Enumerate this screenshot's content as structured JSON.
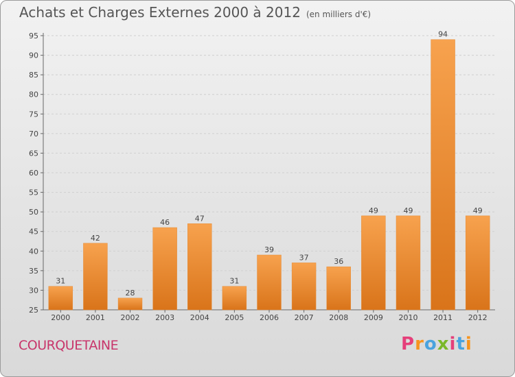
{
  "chart_data": {
    "type": "bar",
    "title": "Achats et Charges Externes 2000 à 2012",
    "subtitle": "(en milliers d'€)",
    "categories": [
      "2000",
      "2001",
      "2002",
      "2003",
      "2004",
      "2005",
      "2006",
      "2007",
      "2008",
      "2009",
      "2010",
      "2011",
      "2012"
    ],
    "values": [
      31,
      42,
      28,
      46,
      47,
      31,
      39,
      37,
      36,
      49,
      49,
      94,
      49
    ],
    "ylim": [
      25,
      95
    ],
    "yticks": [
      25,
      30,
      35,
      40,
      45,
      50,
      55,
      60,
      65,
      70,
      75,
      80,
      85,
      90,
      95
    ],
    "grid": true,
    "bar_color": "#f0913a"
  },
  "footer": {
    "town": "COURQUETAINE",
    "logo": "Proxiti"
  },
  "colors": {
    "town": "#c8356b",
    "logo_letters": [
      "#e53f7a",
      "#f7941d",
      "#4aa3df",
      "#7ab829",
      "#e53f7a",
      "#4aa3df",
      "#f7941d"
    ]
  }
}
